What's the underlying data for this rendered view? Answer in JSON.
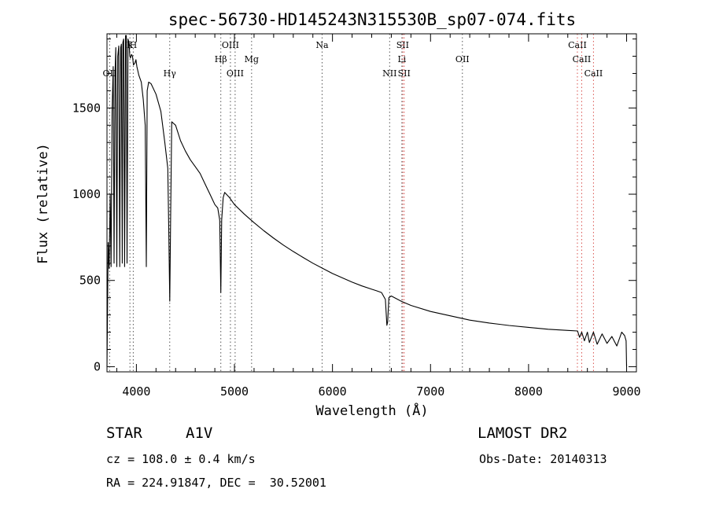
{
  "chart_data": {
    "type": "line",
    "title": "spec-56730-HD145243N315530B_sp07-074.fits",
    "xlabel": "Wavelength (Å)",
    "ylabel": "Flux (relative)",
    "xlim": [
      3700,
      9100
    ],
    "ylim": [
      -30,
      1930
    ],
    "x_ticks": [
      4000,
      5000,
      6000,
      7000,
      8000,
      9000
    ],
    "y_ticks": [
      0,
      500,
      1000,
      1500
    ],
    "grid": false,
    "series": [
      {
        "x": [
          3700,
          3712,
          3722,
          3733,
          3742,
          3752,
          3763,
          3772,
          3782,
          3790,
          3800,
          3810,
          3820,
          3830,
          3840,
          3847,
          3856,
          3862,
          3870,
          3880,
          3889,
          3897,
          3905,
          3914,
          3925,
          3933,
          3940,
          3950,
          3960,
          3970,
          3985,
          3995,
          4005,
          4025,
          4050,
          4070,
          4090,
          4101,
          4110,
          4125,
          4150,
          4200,
          4250,
          4290,
          4320,
          4330,
          4340,
          4350,
          4360,
          4400,
          4450,
          4500,
          4550,
          4600,
          4650,
          4700,
          4750,
          4800,
          4830,
          4850,
          4861,
          4870,
          4885,
          4900,
          4950,
          5000,
          5100,
          5200,
          5300,
          5400,
          5500,
          5600,
          5700,
          5800,
          5900,
          6000,
          6100,
          6200,
          6300,
          6400,
          6450,
          6500,
          6540,
          6555,
          6563,
          6575,
          6600,
          6700,
          6800,
          7000,
          7200,
          7400,
          7600,
          7800,
          8000,
          8200,
          8400,
          8500,
          8520,
          8542,
          8570,
          8600,
          8620,
          8662,
          8700,
          8750,
          8800,
          8850,
          8900,
          8950,
          8980,
          8995,
          9000
        ],
        "y": [
          0,
          720,
          570,
          1000,
          580,
          1480,
          1740,
          600,
          1700,
          1850,
          580,
          1800,
          1860,
          580,
          1850,
          1870,
          600,
          1880,
          1900,
          580,
          1920,
          1920,
          600,
          1900,
          1880,
          1800,
          1790,
          1810,
          1800,
          1750,
          1760,
          1780,
          1740,
          1690,
          1650,
          1550,
          1400,
          580,
          1600,
          1650,
          1640,
          1580,
          1480,
          1300,
          1150,
          800,
          380,
          900,
          1420,
          1400,
          1310,
          1250,
          1200,
          1160,
          1120,
          1060,
          1000,
          940,
          920,
          850,
          430,
          850,
          980,
          1010,
          980,
          940,
          885,
          835,
          788,
          745,
          705,
          668,
          633,
          600,
          570,
          540,
          515,
          490,
          468,
          449,
          440,
          430,
          390,
          240,
          260,
          400,
          410,
          380,
          355,
          320,
          295,
          270,
          253,
          239,
          228,
          217,
          210,
          207,
          170,
          200,
          150,
          200,
          140,
          200,
          130,
          190,
          135,
          175,
          120,
          200,
          180,
          150,
          0
        ]
      }
    ],
    "line_markers": [
      {
        "label": "OII",
        "wavelength": 3727,
        "row": "low"
      },
      {
        "label": "K",
        "wavelength": 3934,
        "row": "top"
      },
      {
        "label": "H",
        "wavelength": 3968,
        "row": "top"
      },
      {
        "label": "Hγ",
        "wavelength": 4340,
        "row": "low"
      },
      {
        "label": "Hβ",
        "wavelength": 4861,
        "row": "mid"
      },
      {
        "label": "OIII",
        "wavelength": 4959,
        "row": "top"
      },
      {
        "label": "OIII",
        "wavelength": 5007,
        "row": "low"
      },
      {
        "label": "Mg",
        "wavelength": 5175,
        "row": "mid"
      },
      {
        "label": "Na",
        "wavelength": 5894,
        "row": "top"
      },
      {
        "label": "NII",
        "wavelength": 6583,
        "row": "low"
      },
      {
        "label": "SII",
        "wavelength": 6716,
        "row": "top"
      },
      {
        "label": "Li",
        "wavelength": 6708,
        "row": "mid"
      },
      {
        "label": "SII",
        "wavelength": 6731,
        "row": "low"
      },
      {
        "label": "OII",
        "wavelength": 7325,
        "row": "mid"
      },
      {
        "label": "CaII",
        "wavelength": 8498,
        "row": "top"
      },
      {
        "label": "CaII",
        "wavelength": 8542,
        "row": "mid"
      },
      {
        "label": "CaII",
        "wavelength": 8662,
        "row": "low"
      }
    ],
    "marker_colors": {
      "default": "#555555",
      "emphasis": "#d9534f"
    }
  },
  "info": {
    "object_class": "STAR",
    "spectral_type": "A1V",
    "survey": "LAMOST DR2",
    "redshift_line": "cz = 108.0 ± 0.4 km/s",
    "obs_date_line": "Obs-Date: 20140313",
    "coords_line": "RA = 224.91847, DEC =  30.52001"
  }
}
